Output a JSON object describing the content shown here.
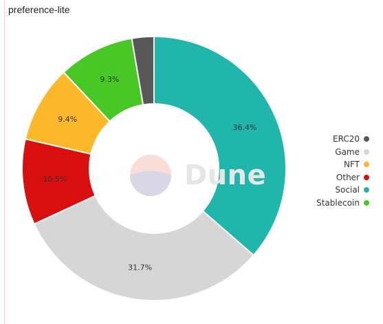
{
  "title": "preference-lite",
  "watermark": "Dune",
  "chart_data": {
    "type": "pie",
    "donut": true,
    "legend_position": "right",
    "slices": [
      {
        "name": "Social",
        "value": 36.4,
        "label": "36.4%",
        "color": "#21b6ab"
      },
      {
        "name": "Game",
        "value": 31.7,
        "label": "31.7%",
        "color": "#d6d6d6"
      },
      {
        "name": "Other",
        "value": 10.5,
        "label": "10.5%",
        "color": "#d90f0f"
      },
      {
        "name": "NFT",
        "value": 9.4,
        "label": "9.4%",
        "color": "#fbb829"
      },
      {
        "name": "Stablecoin",
        "value": 9.3,
        "label": "9.3%",
        "color": "#48c824"
      },
      {
        "name": "ERC20",
        "value": 2.7,
        "label": "",
        "color": "#585858"
      }
    ],
    "legend": [
      {
        "name": "ERC20",
        "color": "#585858"
      },
      {
        "name": "Game",
        "color": "#d6d6d6"
      },
      {
        "name": "NFT",
        "color": "#fbb829"
      },
      {
        "name": "Other",
        "color": "#d90f0f"
      },
      {
        "name": "Social",
        "color": "#21b6ab"
      },
      {
        "name": "Stablecoin",
        "color": "#48c824"
      }
    ]
  }
}
